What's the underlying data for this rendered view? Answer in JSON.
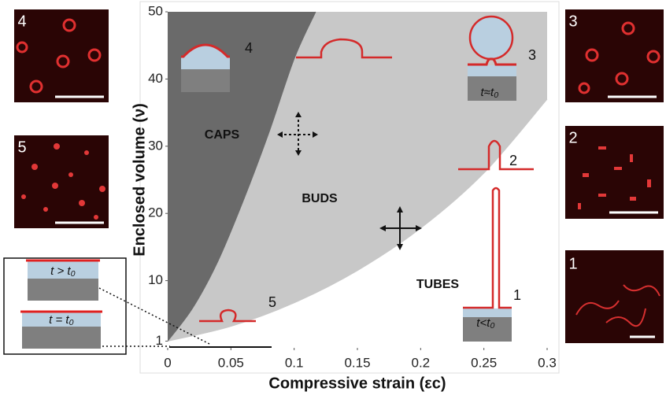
{
  "chart_data": {
    "type": "phase",
    "xlabel": "Compressive strain (εc)",
    "ylabel": "Enclosed volume (ν)",
    "xlim": [
      0,
      0.3
    ],
    "ylim": [
      0,
      50
    ],
    "xticks": [
      0,
      0.05,
      0.1,
      0.15,
      0.2,
      0.25,
      0.3
    ],
    "yticks": [
      1,
      10,
      20,
      30,
      40,
      50
    ],
    "regions": [
      {
        "label": "CAPS",
        "color": "#6a6a6a",
        "boundary": {
          "x": [
            0,
            0.02,
            0.04,
            0.06,
            0.08,
            0.1,
            0.117
          ],
          "y": [
            1,
            6,
            13,
            22,
            32,
            43,
            50
          ]
        }
      },
      {
        "label": "BUDS",
        "color": "#c8c8c8",
        "boundary": {
          "x": [
            0,
            0.05,
            0.1,
            0.15,
            0.2,
            0.25,
            0.3
          ],
          "y": [
            1,
            3.2,
            6.7,
            11.5,
            17.8,
            26,
            37
          ]
        }
      },
      {
        "label": "TUBES",
        "color": "#ffffff"
      }
    ],
    "schematics": [
      {
        "number": "4"
      },
      {
        "number": "3",
        "time": "t≈t₀"
      },
      {
        "number": "2"
      },
      {
        "number": "1",
        "time": "t<t₀"
      },
      {
        "number": "5"
      }
    ],
    "micrographs": [
      {
        "number": "4"
      },
      {
        "number": "5"
      },
      {
        "number": "3"
      },
      {
        "number": "2"
      },
      {
        "number": "1"
      }
    ],
    "inset_labels": [
      "t > t₀",
      "t = t₀"
    ]
  }
}
